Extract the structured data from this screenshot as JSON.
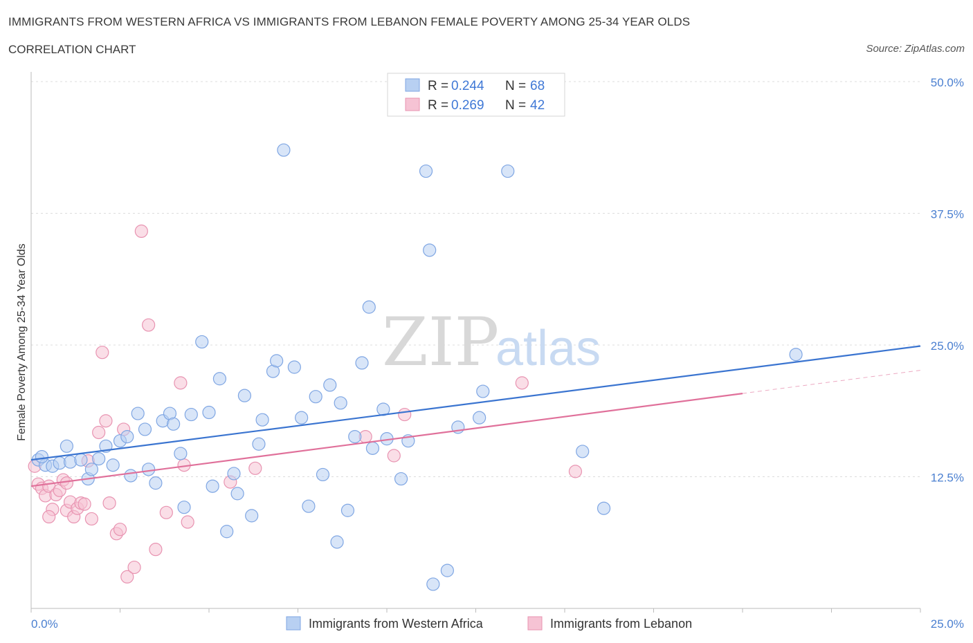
{
  "title": "IMMIGRANTS FROM WESTERN AFRICA VS IMMIGRANTS FROM LEBANON FEMALE POVERTY AMONG 25-34 YEAR OLDS",
  "subtitle": "CORRELATION CHART",
  "source": "Source: ZipAtlas.com",
  "watermark": {
    "zip": "ZIP",
    "atlas": "atlas"
  },
  "colors": {
    "blue_fill": "#b8d0f2",
    "blue_stroke": "#7fa6e3",
    "blue_line": "#3a74d0",
    "pink_fill": "#f6c3d4",
    "pink_stroke": "#e893b1",
    "pink_line": "#e0709a",
    "axis_text": "#4a7fd0",
    "grid": "#dddddd"
  },
  "legend": {
    "rows": [
      {
        "r_label": "R = ",
        "r_value": "0.244",
        "n_label": "N = ",
        "n_value": "68"
      },
      {
        "r_label": "R = ",
        "r_value": "0.269",
        "n_label": "N = ",
        "n_value": "42"
      }
    ]
  },
  "chart_data": {
    "type": "scatter",
    "title": "IMMIGRANTS FROM WESTERN AFRICA VS IMMIGRANTS FROM LEBANON FEMALE POVERTY AMONG 25-34 YEAR OLDS",
    "ylabel": "Female Poverty Among 25-34 Year Olds",
    "xlim": [
      0,
      25
    ],
    "ylim": [
      0,
      50
    ],
    "x_tick_labels": [
      "0.0%",
      "25.0%"
    ],
    "y_ticks": [
      12.5,
      25.0,
      37.5,
      50.0
    ],
    "y_tick_labels": [
      "12.5%",
      "25.0%",
      "37.5%",
      "50.0%"
    ],
    "grid": true,
    "legend_position": "top-center",
    "series": [
      {
        "name": "Immigrants from Western Africa",
        "color": "#7fa6e3",
        "trend": {
          "x": [
            0.0,
            25.0
          ],
          "y": [
            14.1,
            24.9
          ]
        },
        "points": [
          [
            0.2,
            14.1
          ],
          [
            0.4,
            13.6
          ],
          [
            0.6,
            13.5
          ],
          [
            0.8,
            13.8
          ],
          [
            1.0,
            15.4
          ],
          [
            1.1,
            13.9
          ],
          [
            1.4,
            14.1
          ],
          [
            1.6,
            12.3
          ],
          [
            1.7,
            13.2
          ],
          [
            1.9,
            14.2
          ],
          [
            2.1,
            15.4
          ],
          [
            2.3,
            13.6
          ],
          [
            2.5,
            15.9
          ],
          [
            2.7,
            16.3
          ],
          [
            2.8,
            12.6
          ],
          [
            3.0,
            18.5
          ],
          [
            3.2,
            17.0
          ],
          [
            3.3,
            13.2
          ],
          [
            3.5,
            11.9
          ],
          [
            3.7,
            17.8
          ],
          [
            3.9,
            18.5
          ],
          [
            4.0,
            17.5
          ],
          [
            4.2,
            14.7
          ],
          [
            4.3,
            9.6
          ],
          [
            4.5,
            18.4
          ],
          [
            4.8,
            25.3
          ],
          [
            5.0,
            18.6
          ],
          [
            5.1,
            11.6
          ],
          [
            5.3,
            21.8
          ],
          [
            5.5,
            7.3
          ],
          [
            5.7,
            12.8
          ],
          [
            5.8,
            10.9
          ],
          [
            6.0,
            20.2
          ],
          [
            6.2,
            8.8
          ],
          [
            6.4,
            15.6
          ],
          [
            6.5,
            17.9
          ],
          [
            6.8,
            22.5
          ],
          [
            6.9,
            23.5
          ],
          [
            7.1,
            43.5
          ],
          [
            7.4,
            22.9
          ],
          [
            7.6,
            18.1
          ],
          [
            7.8,
            9.7
          ],
          [
            8.0,
            20.1
          ],
          [
            8.2,
            12.7
          ],
          [
            8.4,
            21.2
          ],
          [
            8.6,
            6.3
          ],
          [
            8.7,
            19.5
          ],
          [
            8.9,
            9.3
          ],
          [
            9.1,
            16.3
          ],
          [
            9.3,
            23.3
          ],
          [
            9.5,
            28.6
          ],
          [
            9.6,
            15.2
          ],
          [
            9.9,
            18.9
          ],
          [
            10.0,
            16.1
          ],
          [
            10.4,
            12.3
          ],
          [
            10.6,
            15.9
          ],
          [
            11.1,
            41.5
          ],
          [
            11.2,
            34.0
          ],
          [
            11.3,
            2.3
          ],
          [
            11.7,
            3.6
          ],
          [
            12.0,
            17.2
          ],
          [
            12.6,
            18.1
          ],
          [
            12.7,
            20.6
          ],
          [
            13.4,
            41.5
          ],
          [
            15.5,
            14.9
          ],
          [
            16.1,
            9.5
          ],
          [
            21.5,
            24.1
          ],
          [
            0.3,
            14.4
          ]
        ]
      },
      {
        "name": "Immigrants from Lebanon",
        "color": "#e893b1",
        "trend": {
          "x": [
            0.0,
            20.0
          ],
          "y": [
            11.6,
            20.4
          ]
        },
        "trend_dashed": {
          "x": [
            20.0,
            25.0
          ],
          "y": [
            20.4,
            22.6
          ]
        },
        "points": [
          [
            0.1,
            13.5
          ],
          [
            0.2,
            11.8
          ],
          [
            0.3,
            11.4
          ],
          [
            0.4,
            10.7
          ],
          [
            0.5,
            11.6
          ],
          [
            0.6,
            9.4
          ],
          [
            0.7,
            10.8
          ],
          [
            0.8,
            11.2
          ],
          [
            0.9,
            12.2
          ],
          [
            1.0,
            9.3
          ],
          [
            1.0,
            11.9
          ],
          [
            1.1,
            10.1
          ],
          [
            1.2,
            8.7
          ],
          [
            1.3,
            9.5
          ],
          [
            1.4,
            10.0
          ],
          [
            1.5,
            9.9
          ],
          [
            1.6,
            14.0
          ],
          [
            1.7,
            8.5
          ],
          [
            1.9,
            16.7
          ],
          [
            2.0,
            24.3
          ],
          [
            2.1,
            17.8
          ],
          [
            2.2,
            10.0
          ],
          [
            2.4,
            7.1
          ],
          [
            2.5,
            7.5
          ],
          [
            2.6,
            17.0
          ],
          [
            2.7,
            3.0
          ],
          [
            2.9,
            3.9
          ],
          [
            3.1,
            35.8
          ],
          [
            3.3,
            26.9
          ],
          [
            3.5,
            5.6
          ],
          [
            3.8,
            9.1
          ],
          [
            4.2,
            21.4
          ],
          [
            4.3,
            13.6
          ],
          [
            4.4,
            8.2
          ],
          [
            5.6,
            12.0
          ],
          [
            6.3,
            13.3
          ],
          [
            9.4,
            16.3
          ],
          [
            10.2,
            14.5
          ],
          [
            10.5,
            18.4
          ],
          [
            13.8,
            21.4
          ],
          [
            15.3,
            13.0
          ],
          [
            0.5,
            8.7
          ]
        ]
      }
    ]
  }
}
